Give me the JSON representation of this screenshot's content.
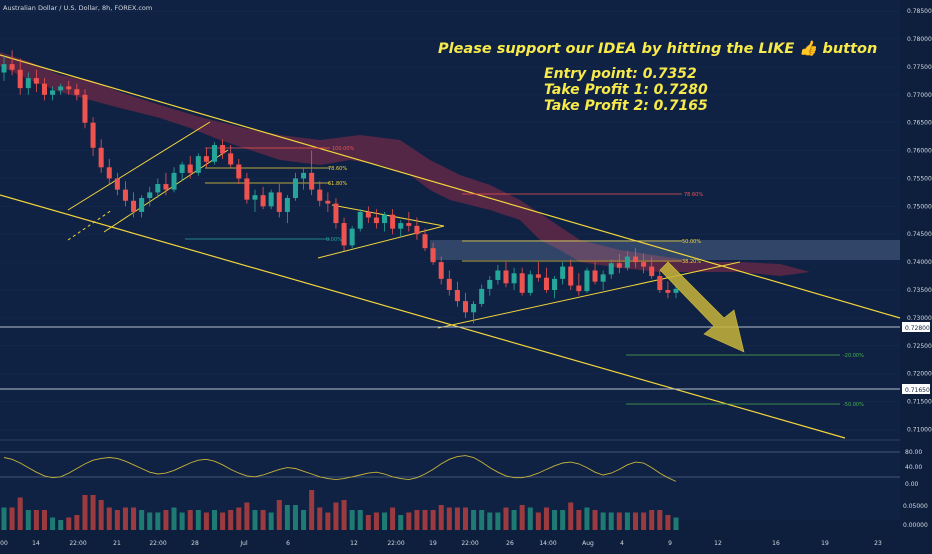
{
  "header": {
    "symbol_title": "Australian Dollar / U.S. Dollar, 8h, FOREX.com"
  },
  "colors": {
    "background": "#0d1f3c",
    "bull": "#26a69a",
    "bear": "#ef5350",
    "trendline": "#f2d43c",
    "cloud": "#6b2a45",
    "annotation": "#f7ea4a"
  },
  "annotations": {
    "support_text": "Please support our IDEA by hitting the LIKE 👍 button",
    "entry": "Entry point: 0.7352",
    "tp1": "Take Profit 1: 0.7280",
    "tp2": "Take Profit 2: 0.7165"
  },
  "price_axis": {
    "ticks": [
      "0.78500",
      "0.78000",
      "0.77500",
      "0.77000",
      "0.76500",
      "0.76000",
      "0.75500",
      "0.75000",
      "0.74500",
      "0.74000",
      "0.73500",
      "0.73000",
      "0.72500",
      "0.72000",
      "0.71500",
      "0.71000"
    ],
    "badges": [
      "0.72800",
      "0.71650"
    ]
  },
  "oscillator_axis": {
    "ticks": [
      "80.00",
      "40.00",
      "0.00"
    ]
  },
  "volume_axis": {
    "ticks": [
      "0.05000",
      "0.00000"
    ]
  },
  "time_axis": {
    "ticks": [
      "00",
      "14",
      "22:00",
      "21",
      "22:00",
      "28",
      "Jul",
      "6",
      "12",
      "22:00",
      "19",
      "22:00",
      "26",
      "14:00",
      "Aug",
      "4",
      "9",
      "12",
      "16",
      "19",
      "23"
    ]
  },
  "fib_labels": {
    "upper_100": "100.00%",
    "upper_786": "78.60%",
    "upper_618": "61.80%",
    "upper_0": "0.00%",
    "right_786": "78.60%",
    "right_50": "50.00%",
    "right_382": "38.20%",
    "ext_neg20": "-20.00%",
    "ext_neg50": "-50.00%"
  },
  "chart_data": {
    "type": "candlestick",
    "title": "Australian Dollar / U.S. Dollar, 8h, FOREX.com",
    "ylim": [
      0.709,
      0.787
    ],
    "candles": [
      [
        0.774,
        0.777,
        0.7725,
        0.7755
      ],
      [
        0.7755,
        0.778,
        0.7735,
        0.7745
      ],
      [
        0.7745,
        0.7765,
        0.77,
        0.7712
      ],
      [
        0.7712,
        0.774,
        0.77,
        0.773
      ],
      [
        0.773,
        0.7745,
        0.7705,
        0.772
      ],
      [
        0.772,
        0.773,
        0.769,
        0.77
      ],
      [
        0.77,
        0.7715,
        0.769,
        0.7708
      ],
      [
        0.7708,
        0.772,
        0.77,
        0.7715
      ],
      [
        0.7715,
        0.7725,
        0.77,
        0.771
      ],
      [
        0.771,
        0.772,
        0.769,
        0.77
      ],
      [
        0.77,
        0.771,
        0.764,
        0.765
      ],
      [
        0.765,
        0.766,
        0.759,
        0.7605
      ],
      [
        0.7605,
        0.762,
        0.756,
        0.757
      ],
      [
        0.757,
        0.7585,
        0.754,
        0.755
      ],
      [
        0.755,
        0.756,
        0.752,
        0.753
      ],
      [
        0.753,
        0.7545,
        0.75,
        0.751
      ],
      [
        0.751,
        0.7525,
        0.748,
        0.749
      ],
      [
        0.749,
        0.752,
        0.748,
        0.7515
      ],
      [
        0.7515,
        0.7535,
        0.75,
        0.7525
      ],
      [
        0.7525,
        0.755,
        0.7515,
        0.754
      ],
      [
        0.754,
        0.756,
        0.752,
        0.753
      ],
      [
        0.753,
        0.757,
        0.7525,
        0.756
      ],
      [
        0.756,
        0.758,
        0.7545,
        0.7575
      ],
      [
        0.7575,
        0.759,
        0.755,
        0.756
      ],
      [
        0.756,
        0.7595,
        0.7555,
        0.759
      ],
      [
        0.759,
        0.7605,
        0.757,
        0.758
      ],
      [
        0.758,
        0.7615,
        0.7575,
        0.761
      ],
      [
        0.761,
        0.762,
        0.7585,
        0.7595
      ],
      [
        0.7595,
        0.761,
        0.757,
        0.7575
      ],
      [
        0.7575,
        0.7585,
        0.754,
        0.755
      ],
      [
        0.755,
        0.756,
        0.7505,
        0.7512
      ],
      [
        0.7512,
        0.753,
        0.749,
        0.752
      ],
      [
        0.752,
        0.7535,
        0.7495,
        0.75
      ],
      [
        0.75,
        0.753,
        0.7495,
        0.7525
      ],
      [
        0.7525,
        0.754,
        0.748,
        0.749
      ],
      [
        0.749,
        0.752,
        0.747,
        0.7515
      ],
      [
        0.7515,
        0.756,
        0.751,
        0.755
      ],
      [
        0.755,
        0.757,
        0.753,
        0.756
      ],
      [
        0.756,
        0.76,
        0.752,
        0.753
      ],
      [
        0.753,
        0.7545,
        0.75,
        0.751
      ],
      [
        0.751,
        0.7525,
        0.749,
        0.7505
      ],
      [
        0.7505,
        0.7515,
        0.746,
        0.747
      ],
      [
        0.747,
        0.748,
        0.742,
        0.743
      ],
      [
        0.743,
        0.7465,
        0.7425,
        0.746
      ],
      [
        0.746,
        0.7495,
        0.7455,
        0.749
      ],
      [
        0.749,
        0.75,
        0.747,
        0.748
      ],
      [
        0.748,
        0.7495,
        0.746,
        0.747
      ],
      [
        0.747,
        0.749,
        0.7455,
        0.7485
      ],
      [
        0.7485,
        0.7495,
        0.745,
        0.746
      ],
      [
        0.746,
        0.7475,
        0.7445,
        0.747
      ],
      [
        0.747,
        0.749,
        0.7455,
        0.7465
      ],
      [
        0.7465,
        0.748,
        0.744,
        0.745
      ],
      [
        0.745,
        0.746,
        0.742,
        0.7425
      ],
      [
        0.7425,
        0.7435,
        0.7395,
        0.74
      ],
      [
        0.74,
        0.741,
        0.736,
        0.737
      ],
      [
        0.737,
        0.7385,
        0.734,
        0.735
      ],
      [
        0.735,
        0.7365,
        0.732,
        0.733
      ],
      [
        0.733,
        0.7345,
        0.73,
        0.731
      ],
      [
        0.731,
        0.733,
        0.729,
        0.7325
      ],
      [
        0.7325,
        0.736,
        0.732,
        0.7352
      ],
      [
        0.7352,
        0.7375,
        0.734,
        0.7368
      ],
      [
        0.7368,
        0.7395,
        0.736,
        0.7385
      ],
      [
        0.7385,
        0.74,
        0.7355,
        0.7362
      ],
      [
        0.7362,
        0.739,
        0.735,
        0.738
      ],
      [
        0.738,
        0.739,
        0.734,
        0.7345
      ],
      [
        0.7345,
        0.7385,
        0.734,
        0.7378
      ],
      [
        0.7378,
        0.74,
        0.7365,
        0.7372
      ],
      [
        0.7372,
        0.739,
        0.7345,
        0.735
      ],
      [
        0.735,
        0.7375,
        0.7335,
        0.737
      ],
      [
        0.737,
        0.74,
        0.736,
        0.7392
      ],
      [
        0.7392,
        0.7405,
        0.735,
        0.7358
      ],
      [
        0.7358,
        0.738,
        0.734,
        0.7348
      ],
      [
        0.7348,
        0.739,
        0.7345,
        0.7385
      ],
      [
        0.7385,
        0.74,
        0.736,
        0.7365
      ],
      [
        0.7365,
        0.7385,
        0.735,
        0.7378
      ],
      [
        0.7378,
        0.7405,
        0.737,
        0.7398
      ],
      [
        0.7398,
        0.7415,
        0.738,
        0.739
      ],
      [
        0.739,
        0.742,
        0.7385,
        0.741
      ],
      [
        0.741,
        0.7425,
        0.739,
        0.74
      ],
      [
        0.74,
        0.7415,
        0.738,
        0.7392
      ],
      [
        0.7392,
        0.741,
        0.737,
        0.7375
      ],
      [
        0.7375,
        0.7385,
        0.7345,
        0.735
      ],
      [
        0.735,
        0.7365,
        0.7335,
        0.7345
      ],
      [
        0.7345,
        0.736,
        0.7335,
        0.7352
      ]
    ],
    "oscillator": [
      62,
      58,
      50,
      40,
      30,
      22,
      18,
      20,
      28,
      38,
      48,
      56,
      60,
      62,
      60,
      54,
      46,
      38,
      30,
      26,
      28,
      34,
      42,
      50,
      56,
      58,
      54,
      46,
      36,
      28,
      22,
      20,
      24,
      30,
      36,
      40,
      38,
      32,
      26,
      20,
      16,
      14,
      16,
      20,
      24,
      28,
      30,
      26,
      20,
      16,
      14,
      18,
      26,
      36,
      48,
      58,
      64,
      66,
      62,
      52,
      40,
      30,
      22,
      18,
      18,
      22,
      28,
      36,
      44,
      50,
      52,
      48,
      40,
      30,
      24,
      28,
      36,
      46,
      52,
      50,
      40,
      28,
      18,
      10
    ]
  }
}
